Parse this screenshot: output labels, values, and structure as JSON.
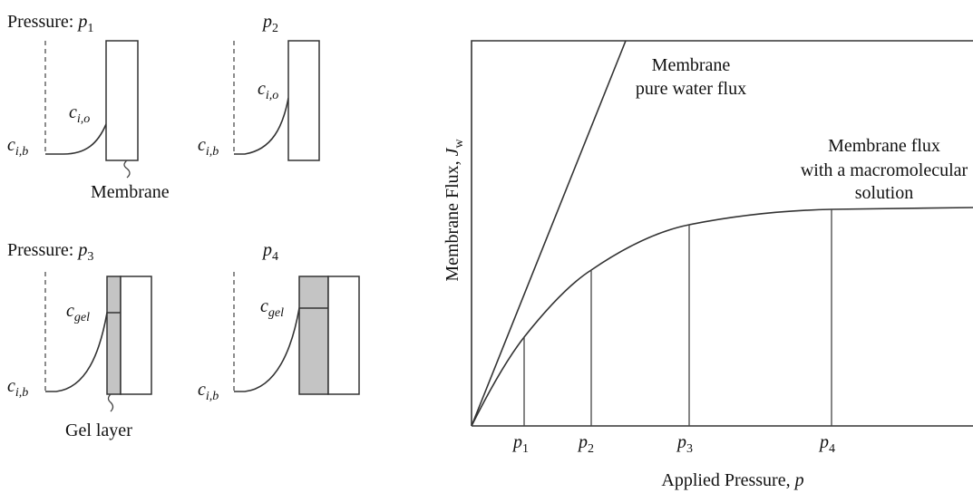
{
  "panels": [
    {
      "label": {
        "prefix": "Pressure:",
        "symbol": "p",
        "sub": "1"
      },
      "surface_label": {
        "symbol": "c",
        "sub": "i,o"
      },
      "bulk_label": {
        "symbol": "c",
        "sub": "i,b"
      },
      "layer_label": "Membrane"
    },
    {
      "label": {
        "symbol": "p",
        "sub": "2"
      },
      "surface_label": {
        "symbol": "c",
        "sub": "i,o"
      },
      "bulk_label": {
        "symbol": "c",
        "sub": "i,b"
      }
    },
    {
      "label": {
        "prefix": "Pressure:",
        "symbol": "p",
        "sub": "3"
      },
      "surface_label": {
        "symbol": "c",
        "sub": "gel"
      },
      "bulk_label": {
        "symbol": "c",
        "sub": "i,b"
      },
      "layer_label": "Gel layer"
    },
    {
      "label": {
        "symbol": "p",
        "sub": "4"
      },
      "surface_label": {
        "symbol": "c",
        "sub": "gel"
      },
      "bulk_label": {
        "symbol": "c",
        "sub": "i,b"
      }
    }
  ],
  "graph": {
    "curves": [
      {
        "label": [
          "Membrane",
          "pure water flux"
        ]
      },
      {
        "label": [
          "Membrane flux",
          "with a macromolecular",
          "solution"
        ]
      }
    ],
    "x_ticks": [
      {
        "symbol": "p",
        "sub": "1"
      },
      {
        "symbol": "p",
        "sub": "2"
      },
      {
        "symbol": "p",
        "sub": "3"
      },
      {
        "symbol": "p",
        "sub": "4"
      }
    ],
    "y_axis_label": {
      "text": "Membrane Flux,",
      "symbol": "J",
      "sub": "w"
    },
    "x_axis_label": {
      "text": "Applied Pressure,",
      "symbol": "p"
    }
  }
}
